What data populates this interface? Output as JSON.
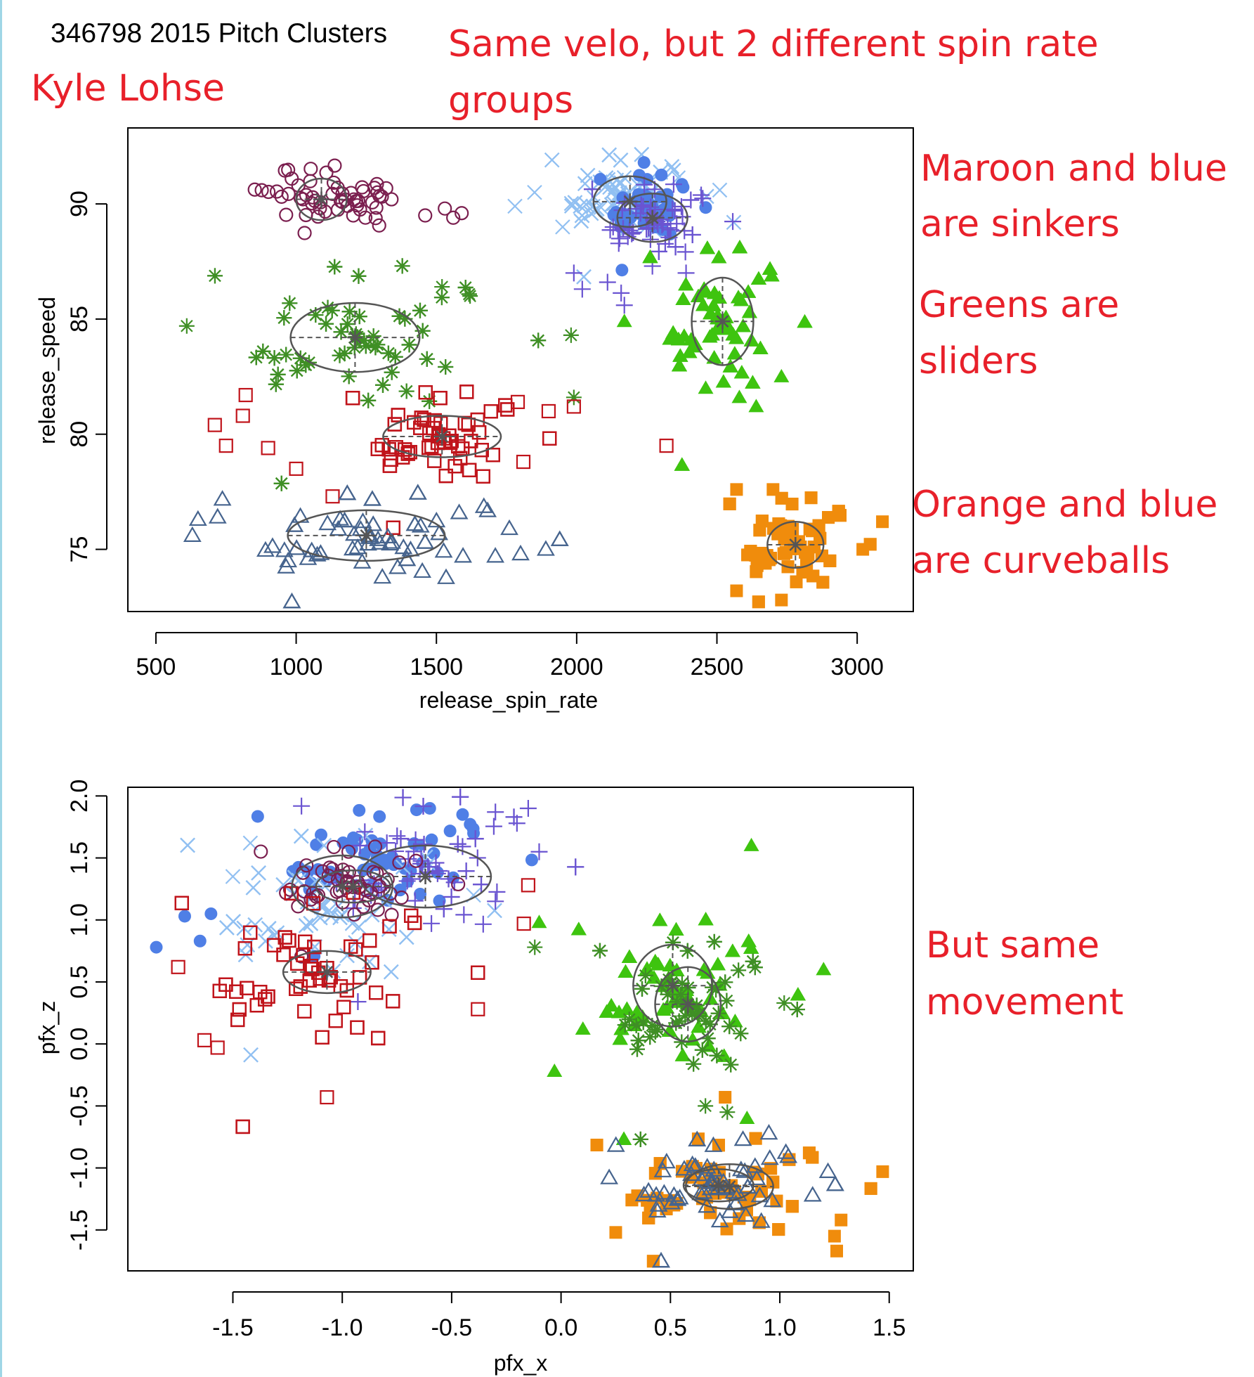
{
  "header": {
    "plot_title": "346798 2015 Pitch Clusters",
    "player_name": "Kyle Lohse"
  },
  "annotations": {
    "same_velo": [
      "Same velo, but 2 different spin rate",
      "groups"
    ],
    "sinkers": [
      "Maroon and blue",
      "are sinkers"
    ],
    "sliders": [
      "Greens are",
      "sliders"
    ],
    "curveballs": [
      "Orange and blue",
      "are curveballs"
    ],
    "movement": [
      "But same",
      "movement"
    ]
  },
  "colors": {
    "maroon": "#7b1f4f",
    "blue": "#4f7fe6",
    "light_blue": "#91c0f2",
    "purple": "#6a54d1",
    "green": "#3ec40f",
    "dark_green": "#3f8f25",
    "red": "#c0141b",
    "orange": "#f08c0c",
    "slate": "#46648e",
    "annotation_red": "#e8202a",
    "ellipse_gray": "#555555"
  },
  "chart_data": [
    {
      "type": "scatter",
      "xlabel": "release_spin_rate",
      "ylabel": "release_speed",
      "xlim": [
        400,
        3200
      ],
      "ylim": [
        72.3,
        93.3
      ],
      "xticks": [
        500,
        1000,
        1500,
        2000,
        2500,
        3000
      ],
      "yticks": [
        75,
        80,
        85,
        90
      ],
      "series": [
        {
          "marker": "circle-open",
          "color": "#7b1f4f",
          "center": [
            1100,
            90.2
          ],
          "sd": [
            110,
            0.75
          ],
          "count": 55,
          "extra": [
            [
              1290,
              90.5
            ],
            [
              1340,
              90.2
            ],
            [
              1460,
              89.5
            ],
            [
              1530,
              89.8
            ],
            [
              1560,
              89.4
            ],
            [
              1590,
              89.6
            ]
          ],
          "ellipse": {
            "center": [
              1090,
              90.2
            ],
            "r": [
              90,
              0.9
            ]
          }
        },
        {
          "marker": "cross",
          "color": "#91c0f2",
          "center": [
            2170,
            90.4
          ],
          "sd": [
            110,
            0.9
          ],
          "count": 170,
          "extra": [
            [
              1780,
              89.9
            ],
            [
              1850,
              90.5
            ],
            [
              1950,
              89.0
            ],
            [
              2510,
              90.6
            ],
            [
              2560,
              89.2
            ]
          ],
          "ellipse": {
            "center": [
              2190,
              90.1
            ],
            "r": [
              130,
              1.1
            ]
          }
        },
        {
          "marker": "circle-filled",
          "color": "#4f7fe6",
          "center": [
            2260,
            89.9
          ],
          "sd": [
            75,
            0.7
          ],
          "count": 45,
          "extra": [
            [
              2240,
              91.8
            ]
          ],
          "ellipse": null
        },
        {
          "marker": "plus",
          "color": "#6a54d1",
          "center": [
            2290,
            89.3
          ],
          "sd": [
            100,
            0.8
          ],
          "count": 75,
          "extra": [
            [
              1990,
              87.0
            ],
            [
              2020,
              86.3
            ],
            [
              2170,
              85.6
            ],
            [
              2270,
              87.3
            ],
            [
              2390,
              87.0
            ],
            [
              2110,
              86.6
            ]
          ],
          "ellipse": {
            "center": [
              2270,
              89.4
            ],
            "r": [
              125,
              1.05
            ]
          }
        },
        {
          "marker": "triangle-filled",
          "color": "#3ec40f",
          "center": [
            2520,
            85.0
          ],
          "sd": [
            110,
            1.6
          ],
          "count": 330,
          "extra": [
            [
              2580,
              81.6
            ],
            [
              2640,
              81.2
            ],
            [
              2460,
              82.0
            ],
            [
              2170,
              84.9
            ],
            [
              2730,
              82.5
            ]
          ],
          "ellipse": {
            "center": [
              2520,
              84.9
            ],
            "r": [
              110,
              1.9
            ]
          }
        },
        {
          "marker": "asterisk",
          "color": "#3f8f25",
          "center": [
            1250,
            84.2
          ],
          "sd": [
            230,
            1.6
          ],
          "count": 150,
          "extra": [
            [
              1980,
              84.3
            ],
            [
              1990,
              81.6
            ],
            [
              1520,
              86.4
            ],
            [
              1620,
              86.0
            ],
            [
              610,
              84.7
            ]
          ],
          "ellipse": {
            "center": [
              1210,
              84.2
            ],
            "r": [
              230,
              1.5
            ]
          }
        },
        {
          "marker": "square-open",
          "color": "#c0141b",
          "center": [
            1530,
            79.9
          ],
          "sd": [
            140,
            1.0
          ],
          "count": 300,
          "extra": [
            [
              810,
              80.8
            ],
            [
              820,
              81.7
            ],
            [
              710,
              80.4
            ],
            [
              900,
              79.4
            ],
            [
              1000,
              78.5
            ],
            [
              1130,
              77.3
            ],
            [
              1790,
              81.4
            ],
            [
              1990,
              81.2
            ],
            [
              1900,
              81.0
            ],
            [
              2320,
              79.5
            ],
            [
              1810,
              78.8
            ],
            [
              750,
              79.5
            ]
          ],
          "ellipse": {
            "center": [
              1520,
              79.9
            ],
            "r": [
              210,
              0.9
            ]
          }
        },
        {
          "marker": "square-filled",
          "color": "#f08c0c",
          "center": [
            2780,
            75.3
          ],
          "sd": [
            100,
            1.0
          ],
          "count": 150,
          "extra": [
            [
              2570,
              77.6
            ],
            [
              2700,
              77.6
            ],
            [
              3090,
              76.2
            ],
            [
              3020,
              75.0
            ],
            [
              2570,
              73.2
            ],
            [
              2730,
              72.8
            ]
          ],
          "ellipse": {
            "center": [
              2780,
              75.2
            ],
            "r": [
              100,
              1.0
            ]
          }
        },
        {
          "marker": "triangle-open",
          "color": "#46648e",
          "center": [
            1300,
            75.5
          ],
          "sd": [
            240,
            1.0
          ],
          "count": 70,
          "extra": [
            [
              650,
              76.3
            ],
            [
              720,
              76.4
            ],
            [
              630,
              75.6
            ],
            [
              1800,
              74.8
            ],
            [
              1890,
              75.0
            ],
            [
              1710,
              74.7
            ],
            [
              1760,
              75.9
            ]
          ],
          "ellipse": {
            "center": [
              1250,
              75.6
            ],
            "r": [
              280,
              1.1
            ]
          }
        }
      ]
    },
    {
      "type": "scatter",
      "xlabel": "pfx_x",
      "ylabel": "pfx_z",
      "xlim": [
        -1.98,
        1.61
      ],
      "ylim": [
        -1.83,
        2.07
      ],
      "xticks": [
        -1.5,
        -1.0,
        -0.5,
        0.0,
        0.5,
        1.0,
        1.5
      ],
      "yticks": [
        -1.5,
        -1.0,
        -0.5,
        0.0,
        0.5,
        1.0,
        1.5,
        2.0
      ],
      "series": [
        {
          "marker": "circle-filled",
          "color": "#4f7fe6",
          "center": [
            -0.8,
            1.5
          ],
          "sd": [
            0.25,
            0.2
          ],
          "count": 60,
          "extra": [
            [
              -1.85,
              0.78
            ],
            [
              -1.72,
              1.03
            ],
            [
              -1.6,
              1.05
            ],
            [
              -1.65,
              0.83
            ],
            [
              -0.6,
              1.9
            ],
            [
              -0.45,
              1.85
            ],
            [
              -0.4,
              1.7
            ]
          ],
          "ellipse": null
        },
        {
          "marker": "cross",
          "color": "#91c0f2",
          "center": [
            -1.05,
            1.1
          ],
          "sd": [
            0.28,
            0.3
          ],
          "count": 200,
          "extra": [
            [
              -1.5,
              1.35
            ],
            [
              -1.42,
              1.62
            ],
            [
              -0.4,
              1.2
            ]
          ],
          "ellipse": {
            "center": [
              -1.0,
              1.27
            ],
            "r": [
              0.23,
              0.25
            ]
          }
        },
        {
          "marker": "plus",
          "color": "#6a54d1",
          "center": [
            -0.6,
            1.45
          ],
          "sd": [
            0.25,
            0.28
          ],
          "count": 80,
          "extra": [
            [
              -0.3,
              1.87
            ],
            [
              -0.15,
              1.9
            ],
            [
              -0.1,
              1.55
            ],
            [
              -0.3,
              1.15
            ]
          ],
          "ellipse": {
            "center": [
              -0.62,
              1.35
            ],
            "r": [
              0.3,
              0.25
            ]
          }
        },
        {
          "marker": "circle-open",
          "color": "#7b1f4f",
          "center": [
            -0.95,
            1.3
          ],
          "sd": [
            0.18,
            0.15
          ],
          "count": 50,
          "extra": [],
          "ellipse": {
            "center": [
              -0.95,
              1.27
            ],
            "r": [
              0.17,
              0.13
            ]
          }
        },
        {
          "marker": "square-open",
          "color": "#c0141b",
          "center": [
            -1.1,
            0.6
          ],
          "sd": [
            0.27,
            0.32
          ],
          "count": 300,
          "extra": [
            [
              -1.75,
              0.62
            ],
            [
              -1.63,
              0.03
            ],
            [
              -1.57,
              -0.03
            ],
            [
              -1.07,
              -0.43
            ],
            [
              -0.38,
              0.28
            ],
            [
              -0.15,
              1.28
            ],
            [
              -0.17,
              0.97
            ]
          ],
          "ellipse": {
            "center": [
              -1.07,
              0.58
            ],
            "r": [
              0.2,
              0.17
            ]
          }
        },
        {
          "marker": "triangle-filled",
          "color": "#3ec40f",
          "center": [
            0.55,
            0.42
          ],
          "sd": [
            0.2,
            0.3
          ],
          "count": 280,
          "extra": [
            [
              0.87,
              1.6
            ],
            [
              1.2,
              0.6
            ],
            [
              -0.03,
              -0.22
            ],
            [
              0.1,
              0.12
            ],
            [
              -0.1,
              0.98
            ],
            [
              0.85,
              -0.6
            ]
          ],
          "ellipse": {
            "center": [
              0.51,
              0.47
            ],
            "r": [
              0.18,
              0.33
            ]
          }
        },
        {
          "marker": "asterisk",
          "color": "#3f8f25",
          "center": [
            0.6,
            0.3
          ],
          "sd": [
            0.18,
            0.27
          ],
          "count": 140,
          "extra": [
            [
              -0.12,
              0.78
            ],
            [
              1.02,
              0.33
            ],
            [
              0.66,
              -0.5
            ],
            [
              0.76,
              -0.55
            ]
          ],
          "ellipse": {
            "center": [
              0.58,
              0.32
            ],
            "r": [
              0.15,
              0.3
            ]
          }
        },
        {
          "marker": "square-filled",
          "color": "#f08c0c",
          "center": [
            0.75,
            -1.15
          ],
          "sd": [
            0.25,
            0.2
          ],
          "count": 150,
          "extra": [
            [
              1.47,
              -1.03
            ],
            [
              1.28,
              -1.42
            ],
            [
              1.25,
              -1.55
            ],
            [
              1.26,
              -1.67
            ],
            [
              0.25,
              -1.52
            ],
            [
              0.75,
              -0.43
            ]
          ],
          "ellipse": {
            "center": [
              0.77,
              -1.15
            ],
            "r": [
              0.2,
              0.18
            ]
          }
        },
        {
          "marker": "triangle-open",
          "color": "#46648e",
          "center": [
            0.72,
            -1.12
          ],
          "sd": [
            0.2,
            0.18
          ],
          "count": 60,
          "extra": [
            [
              1.22,
              -1.03
            ],
            [
              1.15,
              -1.22
            ],
            [
              0.22,
              -1.08
            ],
            [
              0.95,
              -0.72
            ]
          ],
          "ellipse": {
            "center": [
              0.72,
              -1.14
            ],
            "r": [
              0.16,
              0.13
            ]
          }
        }
      ]
    }
  ]
}
